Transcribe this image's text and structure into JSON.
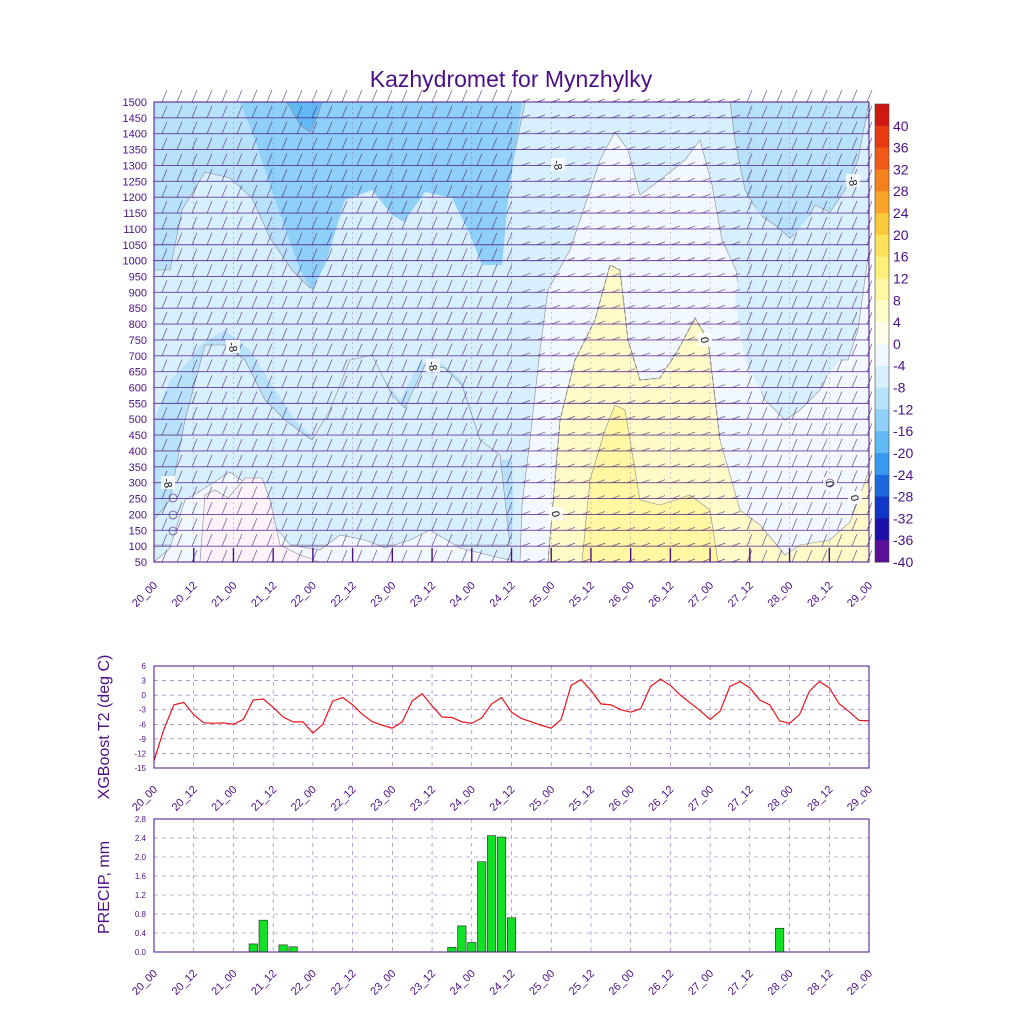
{
  "title": "Kazhydromet for Mynzhylky",
  "colors": {
    "axis": "#4b0f86",
    "t2_line": "#e8121a",
    "precip_fill": "#11e024",
    "contour_line": "#8a8a8a",
    "grid": "#6f3fa8"
  },
  "chart_data": [
    {
      "type": "heatmap",
      "name": "time-height temperature cross-section with wind barbs",
      "x_ticks": [
        "20_00",
        "20_12",
        "21_00",
        "21_12",
        "22_00",
        "22_12",
        "23_00",
        "23_12",
        "24_00",
        "24_12",
        "25_00",
        "25_12",
        "26_00",
        "26_12",
        "27_00",
        "27_12",
        "28_00",
        "28_12",
        "29_00"
      ],
      "y_ticks": [
        50,
        100,
        150,
        200,
        250,
        300,
        350,
        400,
        450,
        500,
        550,
        600,
        650,
        700,
        750,
        800,
        850,
        900,
        950,
        1000,
        1050,
        1100,
        1150,
        1200,
        1250,
        1300,
        1350,
        1400,
        1450,
        1500
      ],
      "ylim": [
        50,
        1500
      ],
      "colorbar": {
        "labels": [
          "40",
          "36",
          "32",
          "28",
          "24",
          "20",
          "16",
          "12",
          "8",
          "4",
          "0",
          "-4",
          "-8",
          "-12",
          "-16",
          "-20",
          "-24",
          "-28",
          "-32",
          "-36",
          "-40"
        ],
        "colors": [
          "#d01812",
          "#e83a12",
          "#f05a18",
          "#f5801e",
          "#f8a52a",
          "#fbc83a",
          "#fde15a",
          "#fff07a",
          "#fff7a2",
          "#fffbc8",
          "#fffde8",
          "#f2f8ff",
          "#d8effd",
          "#b8e2fb",
          "#8fd0f8",
          "#62baf4",
          "#3a9af0",
          "#1c68dc",
          "#1236c8",
          "#1c10a8",
          "#5a0f96"
        ]
      },
      "contour_labels": [
        "-8",
        "-8",
        "-8",
        "-8",
        "-8",
        "0",
        "0",
        "0",
        "0"
      ]
    },
    {
      "type": "line",
      "ylabel": "XGBoost T2 (deg C)",
      "x_ticks": [
        "20_00",
        "20_12",
        "21_00",
        "21_12",
        "22_00",
        "22_12",
        "23_00",
        "23_12",
        "24_00",
        "24_12",
        "25_00",
        "25_12",
        "26_00",
        "26_12",
        "27_00",
        "27_12",
        "28_00",
        "28_12",
        "29_00"
      ],
      "y_ticks": [
        "6",
        "3",
        "0",
        "-3",
        "-6",
        "-9",
        "-12",
        "-15"
      ],
      "ylim": [
        -15,
        6
      ],
      "x_step_hours": 3,
      "values": [
        -13.5,
        -7,
        -2,
        -1.5,
        -4,
        -5.7,
        -5.8,
        -5.7,
        -6,
        -5,
        -1,
        -0.8,
        -2.5,
        -4.5,
        -5.5,
        -5.5,
        -7.8,
        -6,
        -1.2,
        -0.5,
        -2,
        -4,
        -5.5,
        -6.2,
        -6.8,
        -5.5,
        -1.2,
        0.3,
        -2.2,
        -4.5,
        -4.6,
        -5.5,
        -5.8,
        -4.7,
        -1.8,
        -0.5,
        -3.5,
        -4.8,
        -5.5,
        -6.2,
        -6.8,
        -5,
        2,
        3.2,
        1,
        -1.8,
        -2,
        -3,
        -3.5,
        -2.8,
        1.8,
        3.3,
        2,
        0,
        -1.6,
        -3.2,
        -5,
        -3.3,
        1.8,
        2.8,
        1.5,
        -1,
        -2,
        -5.3,
        -5.8,
        -4,
        0.8,
        2.8,
        1.5,
        -1.8,
        -3.4,
        -5.2,
        -5.3
      ]
    },
    {
      "type": "bar",
      "ylabel": "PRECIP, mm",
      "x_ticks": [
        "20_00",
        "20_12",
        "21_00",
        "21_12",
        "22_00",
        "22_12",
        "23_00",
        "23_12",
        "24_00",
        "24_12",
        "25_00",
        "25_12",
        "26_00",
        "26_12",
        "27_00",
        "27_12",
        "28_00",
        "28_12",
        "29_00"
      ],
      "y_ticks": [
        "2.8",
        "2.4",
        "2.0",
        "1.6",
        "1.2",
        "0.8",
        "0.4",
        "0.0"
      ],
      "ylim": [
        0,
        2.8
      ],
      "x_step_hours": 3,
      "nonzero": [
        {
          "hour": 30,
          "value": 0.17
        },
        {
          "hour": 33,
          "value": 0.67
        },
        {
          "hour": 39,
          "value": 0.15
        },
        {
          "hour": 42,
          "value": 0.11
        },
        {
          "hour": 90,
          "value": 0.1
        },
        {
          "hour": 93,
          "value": 0.55
        },
        {
          "hour": 96,
          "value": 0.2
        },
        {
          "hour": 99,
          "value": 1.9
        },
        {
          "hour": 102,
          "value": 2.45
        },
        {
          "hour": 105,
          "value": 2.42
        },
        {
          "hour": 108,
          "value": 0.72
        },
        {
          "hour": 189,
          "value": 0.5
        }
      ]
    }
  ]
}
